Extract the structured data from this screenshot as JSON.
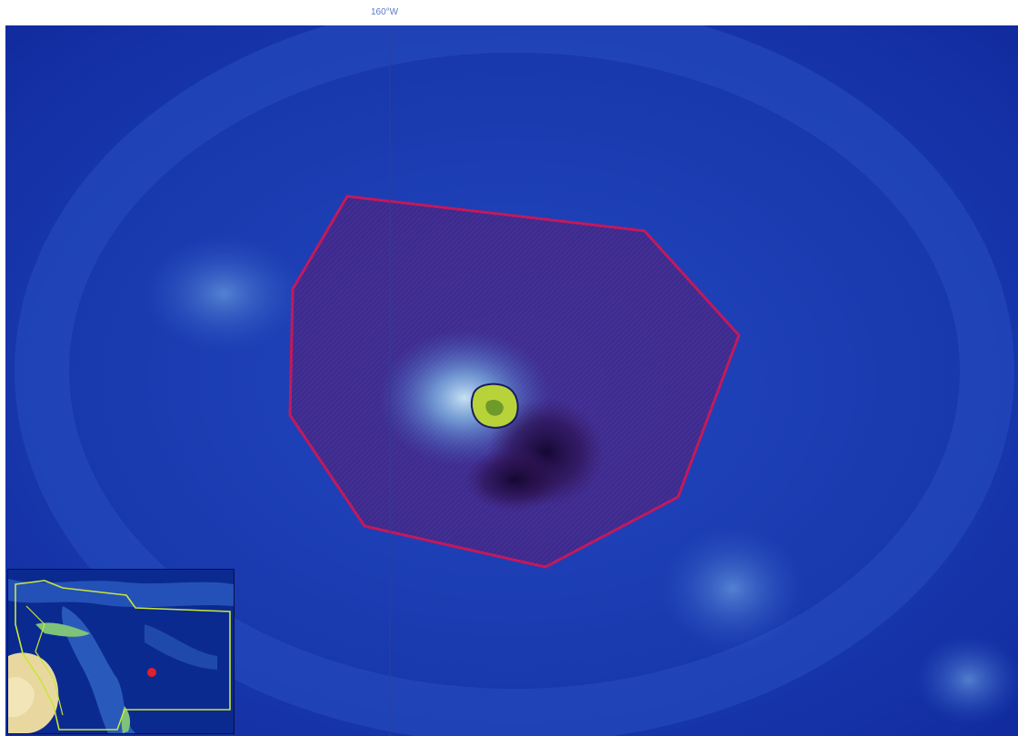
{
  "map": {
    "graticule_label": "160°W",
    "colors": {
      "ocean_deep": "#0d2ca8",
      "ocean_mid": "#1a3fb8",
      "shallow_glow": "#8fc7ea",
      "boundary_stroke": "#c2185b",
      "boundary_fill": "#5a1a70",
      "island_fill": "#b8d23a",
      "graticule_line": "#2a3f9a",
      "inset_outline": "#c8e63c",
      "inset_marker": "#e0202a"
    },
    "icons": {
      "location_marker": "red-dot-icon"
    }
  }
}
